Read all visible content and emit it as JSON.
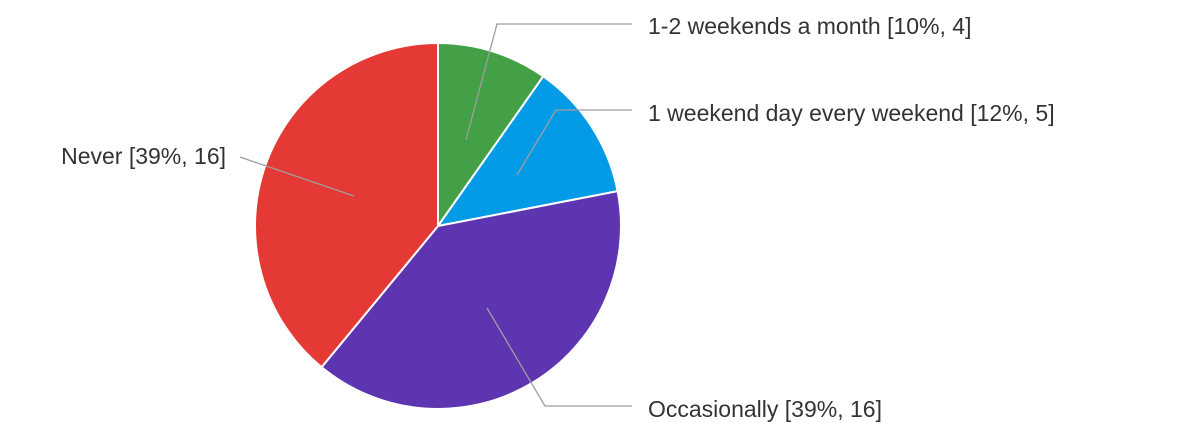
{
  "chart_data": {
    "type": "pie",
    "slices": [
      {
        "label": "1-2 weekends a month [10%, 4]",
        "value": 4,
        "percent": 10,
        "color": "#43a047"
      },
      {
        "label": "1 weekend day every weekend [12%, 5]",
        "value": 5,
        "percent": 12,
        "color": "#039be5"
      },
      {
        "label": "Occasionally [39%, 16]",
        "value": 16,
        "percent": 39,
        "color": "#5e35b1"
      },
      {
        "label": "Never [39%, 16]",
        "value": 16,
        "percent": 39,
        "color": "#e53935"
      }
    ],
    "start_angle": "12 o'clock",
    "direction": "clockwise",
    "legend": "none"
  }
}
